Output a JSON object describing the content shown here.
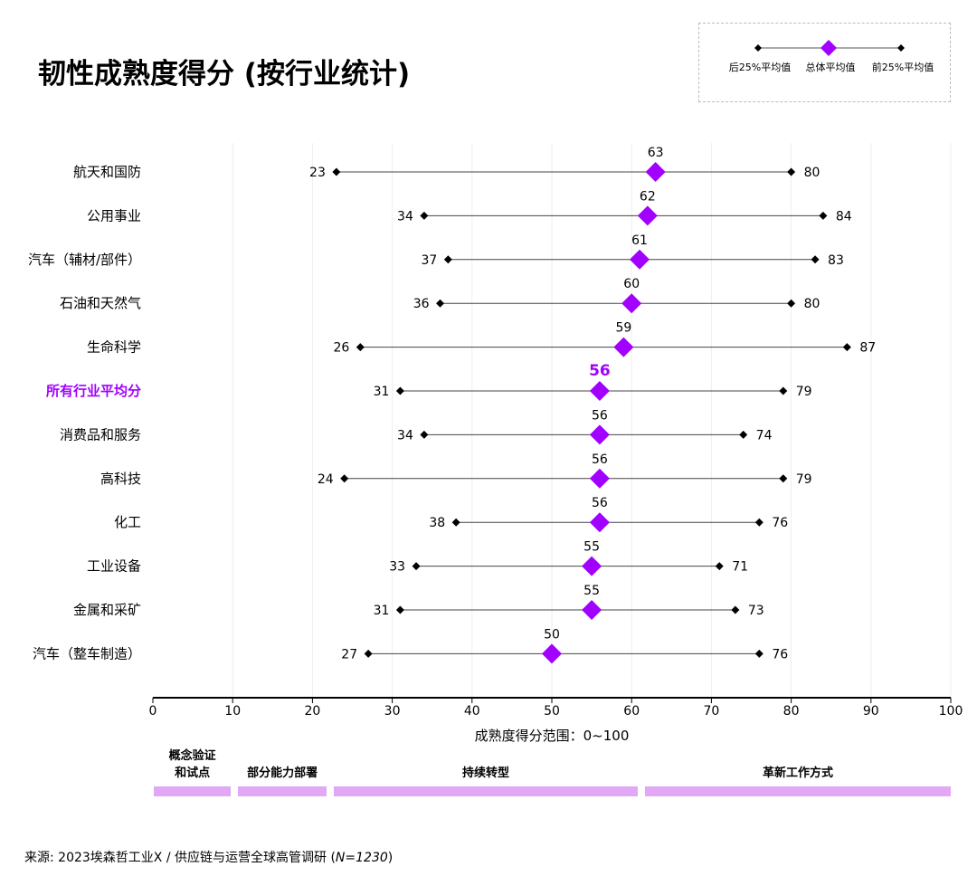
{
  "title": "韧性成熟度得分 (按行业统计)",
  "legend": {
    "items": [
      {
        "label": "后25%平均值",
        "marker": "small-diamond"
      },
      {
        "label": "总体平均值",
        "marker": "large-diamond"
      },
      {
        "label": "前25%平均值",
        "marker": "small-diamond"
      }
    ]
  },
  "colors": {
    "accent": "#a100ff",
    "phase_bar": "#e3a8f5",
    "marker_dark": "#000000",
    "grid": "#eeeeee"
  },
  "chart_data": {
    "type": "dot-range",
    "title": "韧性成熟度得分 (按行业统计)",
    "xlabel": "成熟度得分范围：0~100",
    "xlim": [
      0,
      100
    ],
    "xticks": [
      0,
      10,
      20,
      30,
      40,
      50,
      60,
      70,
      80,
      90,
      100
    ],
    "grid": true,
    "legend_position": "top-right",
    "series_names": [
      "后25%平均值",
      "总体平均值",
      "前25%平均值"
    ],
    "categories": [
      {
        "label": "航天和国防",
        "low": 23,
        "avg": 63,
        "high": 80
      },
      {
        "label": "公用事业",
        "low": 34,
        "avg": 62,
        "high": 84
      },
      {
        "label": "汽车（辅材/部件）",
        "low": 37,
        "avg": 61,
        "high": 83
      },
      {
        "label": "石油和天然气",
        "low": 36,
        "avg": 60,
        "high": 80
      },
      {
        "label": "生命科学",
        "low": 26,
        "avg": 59,
        "high": 87
      },
      {
        "label": "所有行业平均分",
        "low": 31,
        "avg": 56,
        "high": 79,
        "highlight": true
      },
      {
        "label": "消费品和服务",
        "low": 34,
        "avg": 56,
        "high": 74
      },
      {
        "label": "高科技",
        "low": 24,
        "avg": 56,
        "high": 79
      },
      {
        "label": "化工",
        "low": 38,
        "avg": 56,
        "high": 76
      },
      {
        "label": "工业设备",
        "low": 33,
        "avg": 55,
        "high": 71
      },
      {
        "label": "金属和采矿",
        "low": 31,
        "avg": 55,
        "high": 73
      },
      {
        "label": "汽车（整车制造）",
        "low": 27,
        "avg": 50,
        "high": 76
      }
    ],
    "phases": [
      {
        "label": "概念验证\n和试点",
        "from": 0,
        "to": 10
      },
      {
        "label": "部分能力部署",
        "from": 10,
        "to": 22
      },
      {
        "label": "持续转型",
        "from": 22,
        "to": 61
      },
      {
        "label": "革新工作方式",
        "from": 61,
        "to": 100
      }
    ]
  },
  "source": {
    "prefix": "来源: 2023埃森哲工业X / 供应链与运营全球高管调研 (",
    "sample": "N=1230",
    "suffix": ")"
  }
}
